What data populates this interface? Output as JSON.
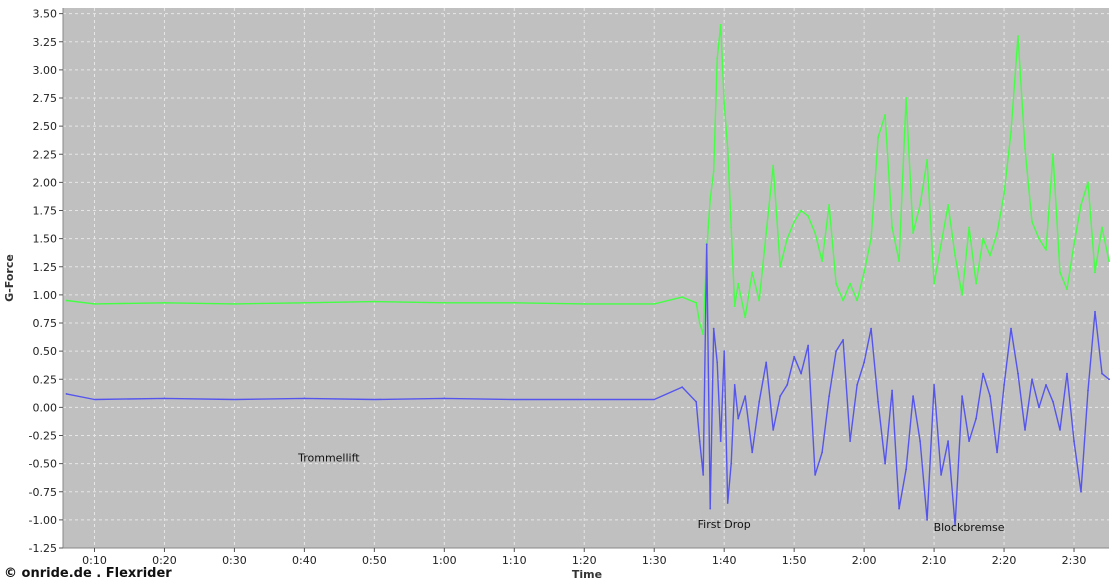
{
  "credit": "© onride.de . Flexrider",
  "chart_data": {
    "type": "line",
    "xlabel": "Time",
    "ylabel": "G-Force",
    "ylim": [
      -1.25,
      3.55
    ],
    "xlim": [
      5.5,
      155
    ],
    "grid": true,
    "background": "#c0c0c0",
    "yticks": [
      -1.25,
      -1.0,
      -0.75,
      -0.5,
      -0.25,
      0.0,
      0.25,
      0.5,
      0.75,
      1.0,
      1.25,
      1.5,
      1.75,
      2.0,
      2.25,
      2.5,
      2.75,
      3.0,
      3.25,
      3.5
    ],
    "ytick_labels": [
      "-1.25",
      "-1.00",
      "-0.75",
      "-0.50",
      "-0.25",
      "0.00",
      "0.25",
      "0.50",
      "0.75",
      "1.00",
      "1.25",
      "1.50",
      "1.75",
      "2.00",
      "2.25",
      "2.50",
      "2.75",
      "3.00",
      "3.25",
      "3.50"
    ],
    "xticks": [
      10,
      20,
      30,
      40,
      50,
      60,
      70,
      80,
      90,
      100,
      110,
      120,
      130,
      140,
      150
    ],
    "xtick_labels": [
      "0:10",
      "0:20",
      "0:30",
      "0:40",
      "0:50",
      "1:00",
      "1:10",
      "1:20",
      "1:30",
      "1:40",
      "1:50",
      "2:00",
      "2:10",
      "2:20",
      "2:30"
    ],
    "x": [
      6,
      10,
      20,
      30,
      40,
      50,
      60,
      70,
      80,
      90,
      94,
      96,
      96.5,
      97,
      97.5,
      98,
      98.5,
      99,
      99.5,
      100,
      100.5,
      101,
      101.5,
      102,
      103,
      104,
      105,
      106,
      107,
      108,
      109,
      110,
      111,
      112,
      113,
      114,
      115,
      116,
      117,
      118,
      119,
      120,
      121,
      122,
      123,
      124,
      125,
      126,
      127,
      128,
      129,
      130,
      131,
      132,
      133,
      134,
      135,
      136,
      137,
      138,
      139,
      140,
      141,
      142,
      143,
      144,
      145,
      146,
      147,
      148,
      149,
      150,
      151,
      152,
      153,
      154,
      155
    ],
    "series": [
      {
        "color": "#44ff44",
        "values": [
          0.95,
          0.92,
          0.93,
          0.92,
          0.93,
          0.94,
          0.93,
          0.93,
          0.92,
          0.92,
          0.98,
          0.93,
          0.75,
          0.65,
          1.4,
          1.85,
          2.1,
          3.1,
          3.4,
          2.7,
          2.3,
          1.6,
          0.9,
          1.1,
          0.8,
          1.2,
          0.95,
          1.55,
          2.15,
          1.25,
          1.5,
          1.65,
          1.75,
          1.7,
          1.55,
          1.3,
          1.8,
          1.1,
          0.95,
          1.1,
          0.95,
          1.2,
          1.5,
          2.4,
          2.6,
          1.6,
          1.3,
          2.75,
          1.55,
          1.8,
          2.2,
          1.1,
          1.45,
          1.8,
          1.35,
          1.0,
          1.6,
          1.1,
          1.5,
          1.35,
          1.55,
          1.9,
          2.45,
          3.3,
          2.3,
          1.65,
          1.5,
          1.4,
          2.25,
          1.2,
          1.05,
          1.45,
          1.8,
          2.0,
          1.2,
          1.6,
          1.3
        ]
      },
      {
        "color": "#5555ee",
        "values": [
          0.12,
          0.07,
          0.08,
          0.07,
          0.08,
          0.07,
          0.08,
          0.07,
          0.07,
          0.07,
          0.18,
          0.05,
          -0.3,
          -0.6,
          1.45,
          -0.9,
          0.7,
          0.4,
          -0.3,
          0.5,
          -0.85,
          -0.5,
          0.2,
          -0.1,
          0.1,
          -0.4,
          0.05,
          0.4,
          -0.2,
          0.1,
          0.2,
          0.45,
          0.3,
          0.55,
          -0.6,
          -0.4,
          0.1,
          0.5,
          0.6,
          -0.3,
          0.2,
          0.4,
          0.7,
          0.05,
          -0.5,
          0.15,
          -0.9,
          -0.55,
          0.1,
          -0.3,
          -1.0,
          0.2,
          -0.6,
          -0.3,
          -1.05,
          0.1,
          -0.3,
          -0.1,
          0.3,
          0.1,
          -0.4,
          0.2,
          0.7,
          0.3,
          -0.2,
          0.25,
          0.0,
          0.2,
          0.05,
          -0.2,
          0.3,
          -0.3,
          -0.75,
          0.15,
          0.85,
          0.3,
          0.25
        ]
      }
    ],
    "annotations": [
      {
        "text": "Trommellift",
        "x": 43.5,
        "y": -0.48
      },
      {
        "text": "First Drop",
        "x": 100,
        "y": -1.07
      },
      {
        "text": "Blockbremse",
        "x": 135,
        "y": -1.1
      }
    ]
  }
}
